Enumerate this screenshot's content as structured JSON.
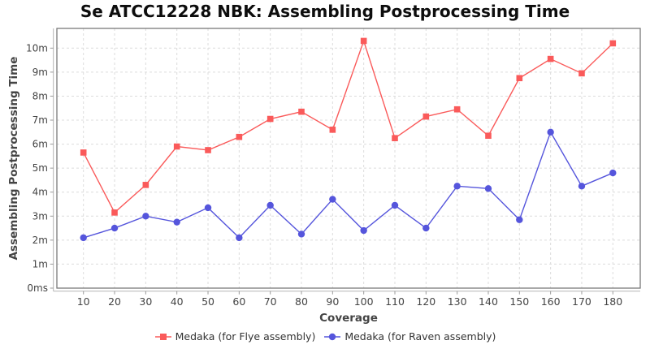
{
  "title": "Se ATCC12228 NBK: Assembling Postprocessing Time",
  "chart_data": {
    "type": "line",
    "title": "Se ATCC12228 NBK: Assembling Postprocessing Time",
    "xlabel": "Coverage",
    "ylabel": "Assembling Postprocessing Time",
    "x": [
      10,
      20,
      30,
      40,
      50,
      60,
      70,
      80,
      90,
      100,
      110,
      120,
      130,
      140,
      150,
      160,
      170,
      180
    ],
    "x_tick_labels": [
      "10",
      "20",
      "30",
      "40",
      "50",
      "60",
      "70",
      "80",
      "90",
      "100",
      "110",
      "120",
      "130",
      "140",
      "150",
      "160",
      "170",
      "180"
    ],
    "y_ticks": [
      0,
      1,
      2,
      3,
      4,
      5,
      6,
      7,
      8,
      9,
      10
    ],
    "y_tick_labels": [
      "0ms",
      "1m",
      "2m",
      "3m",
      "4m",
      "5m",
      "6m",
      "7m",
      "8m",
      "9m",
      "10m"
    ],
    "ylim": [
      0,
      10.8
    ],
    "grid": true,
    "grid_style": "dashed",
    "legend_position": "bottom",
    "series": [
      {
        "name": "Medaka (for Flye assembly)",
        "color": "#fa5a5a",
        "marker": "square",
        "values": [
          5.65,
          3.15,
          4.3,
          5.9,
          5.75,
          6.3,
          7.05,
          7.35,
          6.6,
          10.3,
          6.25,
          7.15,
          7.45,
          6.35,
          8.75,
          9.55,
          8.95,
          10.2
        ]
      },
      {
        "name": "Medaka (for Raven assembly)",
        "color": "#5555dc",
        "marker": "circle",
        "values": [
          2.1,
          2.5,
          3.0,
          2.75,
          3.35,
          2.1,
          3.45,
          2.25,
          3.7,
          2.4,
          3.45,
          2.5,
          4.25,
          4.15,
          2.85,
          6.5,
          4.25,
          4.8
        ]
      }
    ]
  },
  "style_colors": {
    "gridline": "#dcdcdc",
    "frame": "#7a7a7a",
    "axis_line": "#b3b3b3",
    "tick": "#999999",
    "tick_label": "#444444"
  }
}
